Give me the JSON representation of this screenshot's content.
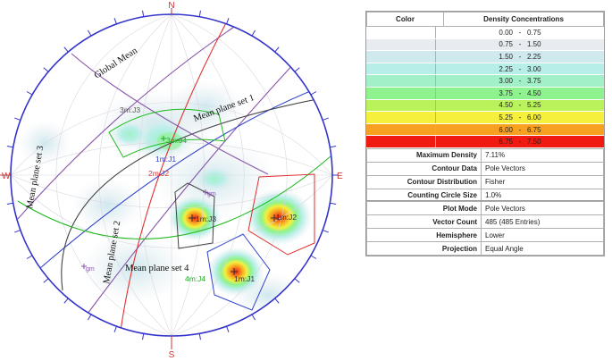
{
  "compass": {
    "north": "N",
    "south": "S",
    "east": "E",
    "west": "W"
  },
  "plane_labels": {
    "global_mean": "Global Mean",
    "set1": "Mean plane set 1",
    "set2": "Mean plane set 2",
    "set3": "Mean plane set 3",
    "set4": "Mean plane set 4"
  },
  "pole_labels": {
    "j3_3m": "3m:J3",
    "j4_3m": "3m:J4",
    "j1_1m": "1m:J1",
    "j2_2m": "2m:J2",
    "j3_1m": "1m:J3",
    "j2_1m": "1m:J2",
    "j4_4m": "4m:J4",
    "j1_1m_b": "1m:J1",
    "gm": "gm",
    "gm2": "gm"
  },
  "legend": {
    "color_header": "Color",
    "density_header": "Density Concentrations",
    "rows": [
      {
        "min": "0.00",
        "max": "0.75",
        "color": "#ffffff"
      },
      {
        "min": "0.75",
        "max": "1.50",
        "color": "#e8ecf0"
      },
      {
        "min": "1.50",
        "max": "2.25",
        "color": "#cfe9ee"
      },
      {
        "min": "2.25",
        "max": "3.00",
        "color": "#b7efe8"
      },
      {
        "min": "3.00",
        "max": "3.75",
        "color": "#a2f0c8"
      },
      {
        "min": "3.75",
        "max": "4.50",
        "color": "#8ef28e"
      },
      {
        "min": "4.50",
        "max": "5.25",
        "color": "#b9f25a"
      },
      {
        "min": "5.25",
        "max": "6.00",
        "color": "#f4f03c"
      },
      {
        "min": "6.00",
        "max": "6.75",
        "color": "#f8a020"
      },
      {
        "min": "6.75",
        "max": "7.50",
        "color": "#f01a10"
      }
    ]
  },
  "stats": [
    {
      "label": "Maximum Density",
      "value": "7.11%"
    },
    {
      "label": "Contour Data",
      "value": "Pole Vectors"
    },
    {
      "label": "Contour Distribution",
      "value": "Fisher"
    },
    {
      "label": "Counting Circle Size",
      "value": "1.0%"
    }
  ],
  "info": [
    {
      "label": "Plot Mode",
      "value": "Pole Vectors"
    },
    {
      "label": "Vector Count",
      "value": "485 (485 Entries)"
    },
    {
      "label": "Hemisphere",
      "value": "Lower"
    },
    {
      "label": "Projection",
      "value": "Equal Angle"
    }
  ],
  "colors": {
    "circle": "#3333cc",
    "set_red": "#e03030",
    "set_blue": "#3344cc",
    "set_purple": "#8855aa",
    "set_black": "#444444",
    "set_green": "#22bb22"
  }
}
